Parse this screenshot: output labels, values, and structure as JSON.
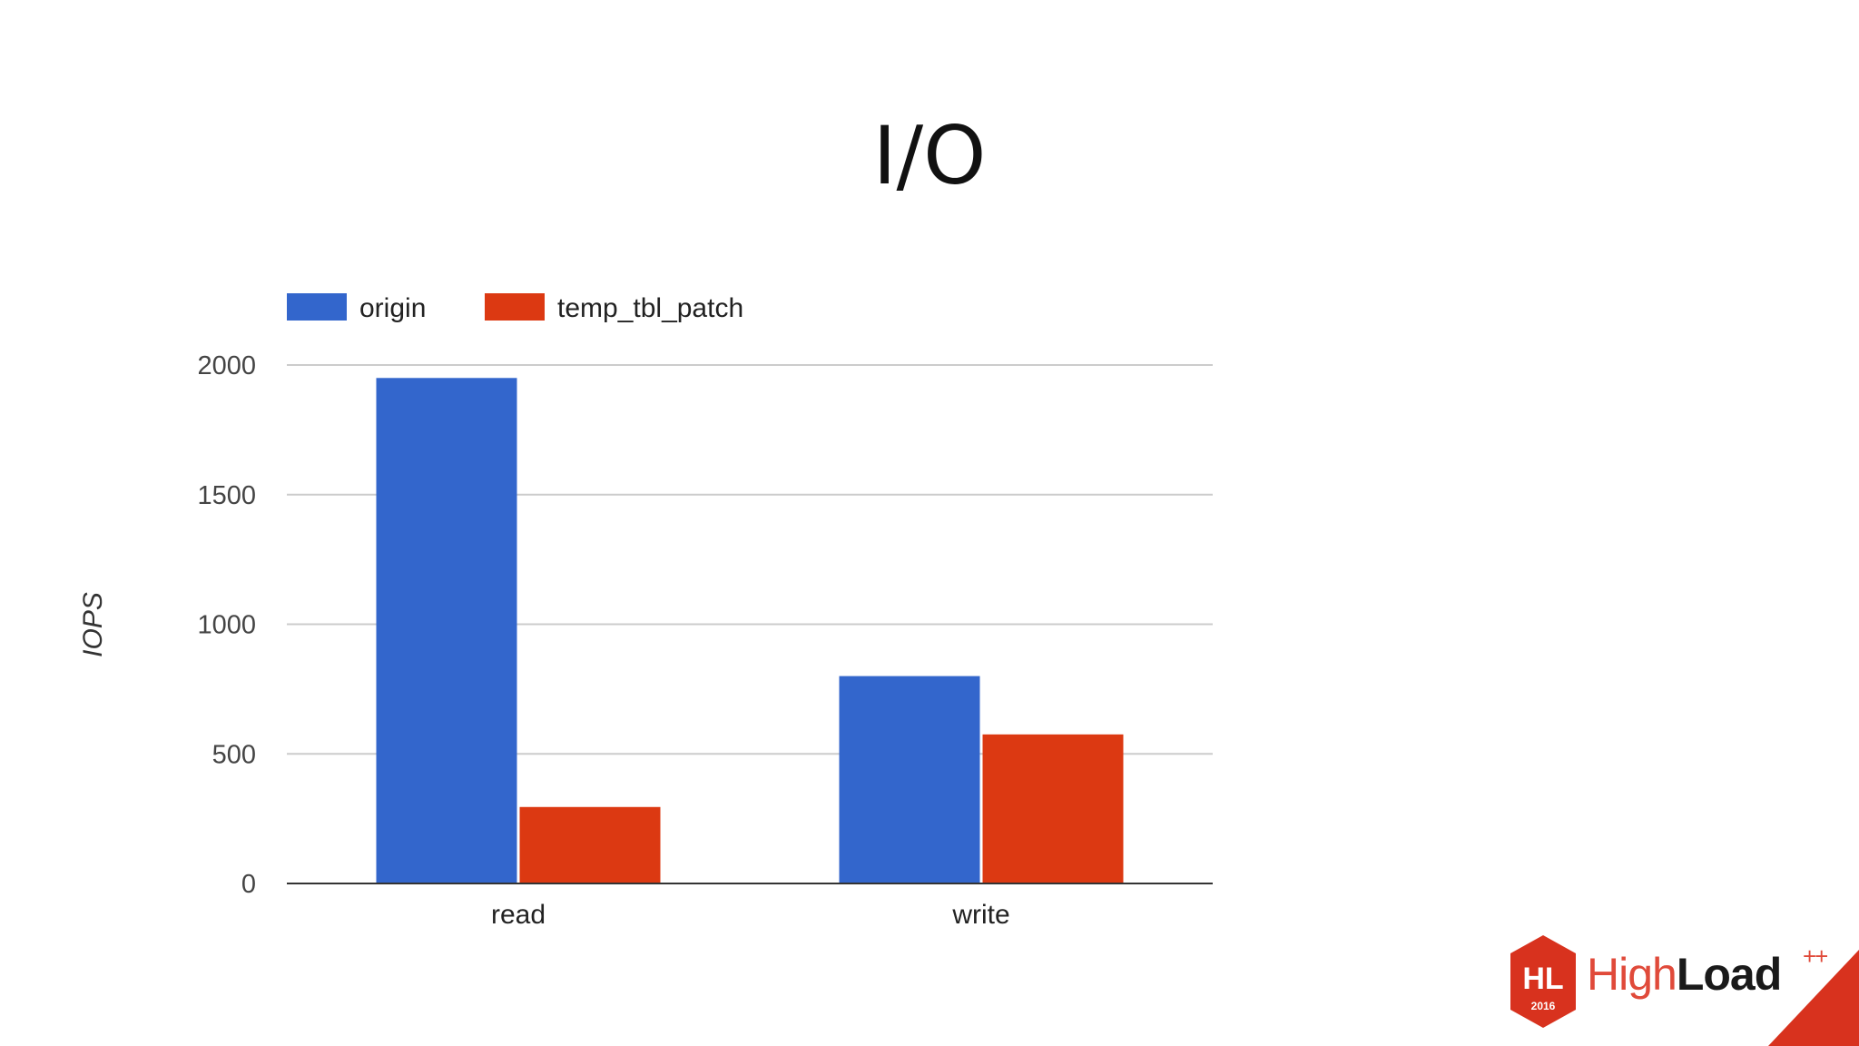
{
  "slide": {
    "title": "I/O"
  },
  "chart_data": {
    "type": "bar",
    "categories": [
      "read",
      "write"
    ],
    "series": [
      {
        "name": "origin",
        "color": "#3366cc",
        "values": [
          1950,
          800
        ]
      },
      {
        "name": "temp_tbl_patch",
        "color": "#dc3912",
        "values": [
          295,
          575
        ]
      }
    ],
    "ylabel": "IOPS",
    "ylim": [
      0,
      2000
    ],
    "yticks": [
      0,
      500,
      1000,
      1500,
      2000
    ],
    "grid": true,
    "legend_position": "top-left"
  },
  "brand": {
    "logo_badge_text": "HL",
    "logo_year": "2016",
    "name_part1": "High",
    "name_part2": "Load",
    "name_suffix": "++",
    "accent_color": "#d8321e"
  }
}
